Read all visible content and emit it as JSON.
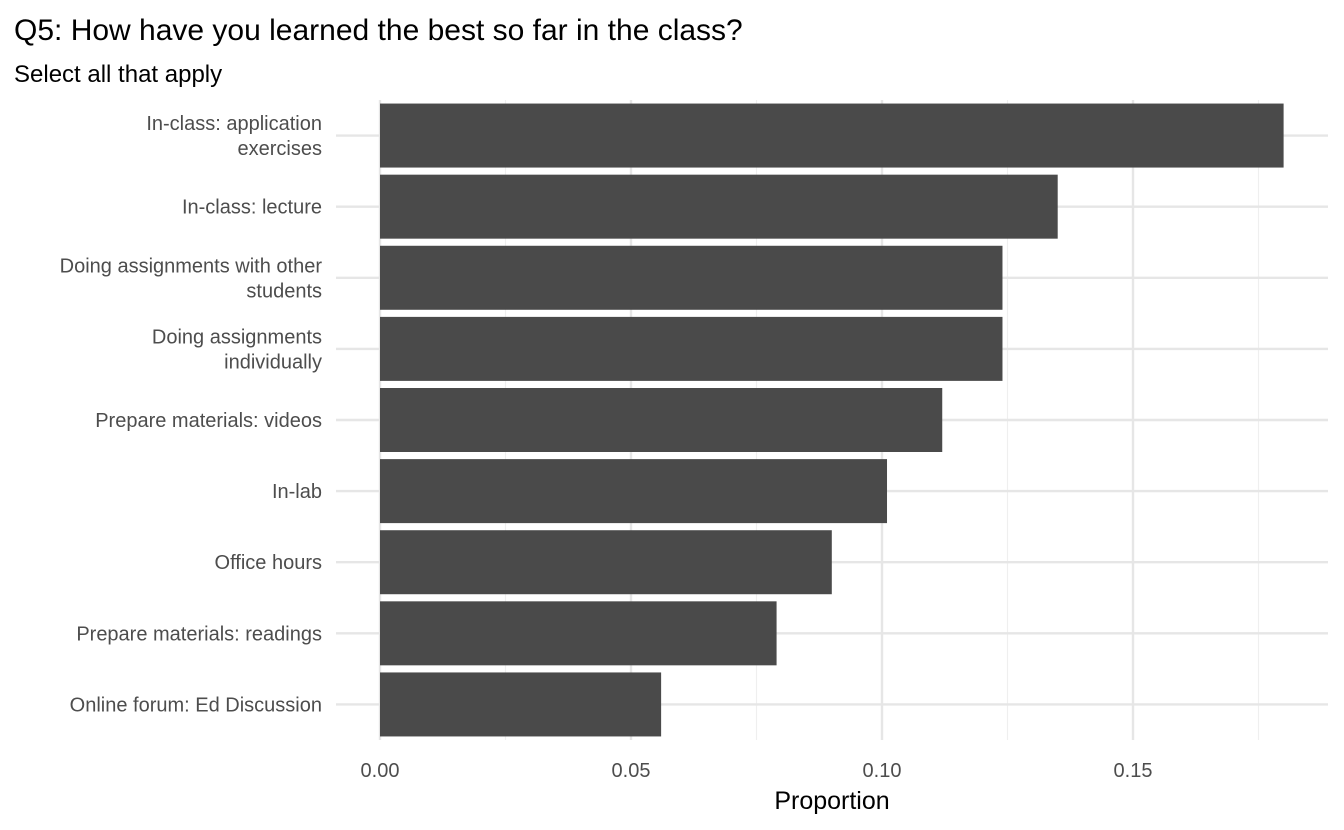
{
  "chart_data": {
    "type": "bar",
    "orientation": "horizontal",
    "title": "Q5: How have you learned the best so far in the class?",
    "subtitle": "Select all that apply",
    "xlabel": "Proportion",
    "ylabel": "",
    "xlim": [
      0,
      0.18
    ],
    "x_ticks": [
      0.0,
      0.05,
      0.1,
      0.15
    ],
    "x_tick_labels": [
      "0.00",
      "0.05",
      "0.10",
      "0.15"
    ],
    "grid": true,
    "legend": "none",
    "bar_color": "#4a4a4a",
    "categories": [
      [
        "In-class: application",
        "exercises"
      ],
      [
        "In-class: lecture"
      ],
      [
        "Doing assignments with other",
        "students"
      ],
      [
        "Doing assignments",
        "individually"
      ],
      [
        "Prepare materials: videos"
      ],
      [
        "In-lab"
      ],
      [
        "Office hours"
      ],
      [
        "Prepare materials: readings"
      ],
      [
        "Online forum: Ed Discussion"
      ]
    ],
    "values": [
      0.18,
      0.135,
      0.124,
      0.124,
      0.112,
      0.101,
      0.09,
      0.079,
      0.056
    ]
  }
}
